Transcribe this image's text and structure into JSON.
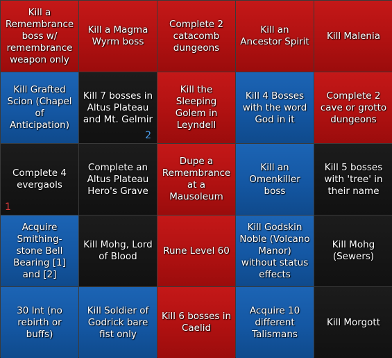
{
  "colors": {
    "red": "#b01111",
    "blue": "#1457a3",
    "black": "#161616",
    "marker_blue": "#4a9be8",
    "marker_red": "#d93a3a"
  },
  "board": {
    "cells": [
      {
        "label": "Kill a Remembrance boss w/ remembrance weapon only",
        "color": "red"
      },
      {
        "label": "Kill a Magma Wyrm boss",
        "color": "red"
      },
      {
        "label": "Complete 2 catacomb dungeons",
        "color": "red"
      },
      {
        "label": "Kill an Ancestor Spirit",
        "color": "red"
      },
      {
        "label": "Kill Malenia",
        "color": "red"
      },
      {
        "label": "Kill Grafted Scion (Chapel of Anticipation)",
        "color": "blue"
      },
      {
        "label": "Kill 7 bosses in Altus Plateau and Mt. Gelmir",
        "color": "black",
        "marker": "2"
      },
      {
        "label": "Kill the Sleeping Golem in Leyndell",
        "color": "red"
      },
      {
        "label": "Kill 4 Bosses with the word God in it",
        "color": "blue"
      },
      {
        "label": "Complete 2 cave or grotto dungeons",
        "color": "red"
      },
      {
        "label": "Complete 4 evergaols",
        "color": "black",
        "marker": "1"
      },
      {
        "label": "Complete an Altus Plateau Hero's Grave",
        "color": "black"
      },
      {
        "label": "Dupe a Remembrance at a Mausoleum",
        "color": "red"
      },
      {
        "label": "Kill an Omenkiller boss",
        "color": "blue"
      },
      {
        "label": "Kill 5 bosses with 'tree' in their name",
        "color": "black"
      },
      {
        "label": "Acquire Smithing-stone Bell Bearing [1] and [2]",
        "color": "blue"
      },
      {
        "label": "Kill Mohg, Lord of Blood",
        "color": "black"
      },
      {
        "label": "Rune Level 60",
        "color": "red"
      },
      {
        "label": "Kill Godskin Noble (Volcano Manor) without status effects",
        "color": "blue"
      },
      {
        "label": "Kill Mohg (Sewers)",
        "color": "black"
      },
      {
        "label": "30 Int (no rebirth or buffs)",
        "color": "blue"
      },
      {
        "label": "Kill Soldier of Godrick bare fist only",
        "color": "blue"
      },
      {
        "label": "Kill 6 bosses in Caelid",
        "color": "red"
      },
      {
        "label": "Acquire 10 different Talismans",
        "color": "blue"
      },
      {
        "label": "Kill Morgott",
        "color": "black"
      }
    ]
  }
}
